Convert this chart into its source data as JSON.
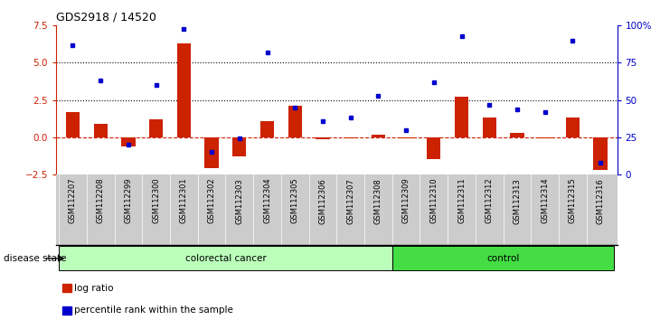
{
  "title": "GDS2918 / 14520",
  "samples": [
    "GSM112207",
    "GSM112208",
    "GSM112299",
    "GSM112300",
    "GSM112301",
    "GSM112302",
    "GSM112303",
    "GSM112304",
    "GSM112305",
    "GSM112306",
    "GSM112307",
    "GSM112308",
    "GSM112309",
    "GSM112310",
    "GSM112311",
    "GSM112312",
    "GSM112313",
    "GSM112314",
    "GSM112315",
    "GSM112316"
  ],
  "log_ratio": [
    1.7,
    0.9,
    -0.6,
    1.2,
    6.3,
    -2.1,
    -1.3,
    1.1,
    2.1,
    -0.15,
    -0.1,
    0.15,
    -0.1,
    -1.5,
    2.7,
    1.3,
    0.3,
    -0.05,
    1.3,
    -2.2
  ],
  "percentile_rank": [
    87,
    63,
    20,
    60,
    98,
    15,
    24,
    82,
    45,
    36,
    38,
    53,
    30,
    62,
    93,
    47,
    44,
    42,
    90,
    8
  ],
  "colorectal_count": 12,
  "control_count": 8,
  "ylim_left": [
    -2.5,
    7.5
  ],
  "ylim_right": [
    0,
    100
  ],
  "yticks_left": [
    -2.5,
    0,
    2.5,
    5.0,
    7.5
  ],
  "yticks_right": [
    0,
    25,
    50,
    75,
    100
  ],
  "hlines": [
    2.5,
    5.0
  ],
  "bar_color": "#cc2200",
  "dot_color": "#0000cc",
  "colorectal_color": "#bbffbb",
  "control_color": "#44dd44",
  "label_color_left": "#cc2200",
  "label_color_right": "#0000cc",
  "zero_line_color": "#cc2200",
  "tick_bg_color": "#cccccc",
  "legend_bar_label": "log ratio",
  "legend_dot_label": "percentile rank within the sample",
  "disease_state_label": "disease state",
  "colorectal_label": "colorectal cancer",
  "control_label": "control"
}
